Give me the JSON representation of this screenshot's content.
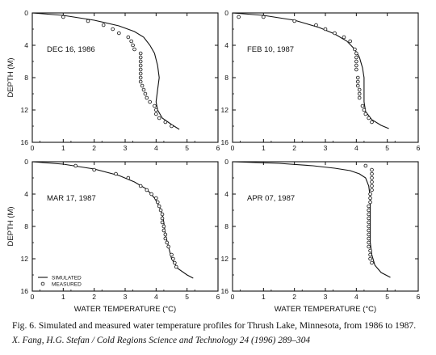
{
  "chart_data": [
    {
      "type": "line",
      "title": "DEC 16, 1986",
      "xlabel": "",
      "ylabel": "DEPTH (M)",
      "xlim": [
        0,
        6
      ],
      "ylim": [
        16,
        0
      ],
      "xticks": [
        "0",
        "1",
        "2",
        "3",
        "4",
        "5",
        "6"
      ],
      "yticks": [
        "0",
        "4",
        "8",
        "12",
        "16"
      ],
      "series": [
        {
          "name": "SIMULATED",
          "style": "line",
          "x": [
            0,
            1.0,
            2.0,
            2.8,
            3.3,
            3.6,
            3.8,
            3.95,
            4.05,
            4.1,
            4.05,
            4.0,
            4.05,
            4.2,
            4.5,
            4.75
          ],
          "y": [
            0,
            0.3,
            0.9,
            1.6,
            2.3,
            3.0,
            4.0,
            5.0,
            6.5,
            8.0,
            9.5,
            11.0,
            12.0,
            13.0,
            13.8,
            14.4
          ]
        },
        {
          "name": "MEASURED",
          "style": "circle",
          "x": [
            1.0,
            1.8,
            2.3,
            2.6,
            2.8,
            3.1,
            3.2,
            3.25,
            3.3,
            3.5,
            3.5,
            3.5,
            3.5,
            3.5,
            3.5,
            3.5,
            3.5,
            3.55,
            3.6,
            3.65,
            3.7,
            3.8,
            3.95,
            4.0,
            4.0,
            4.1,
            4.3,
            4.5
          ],
          "y": [
            0.5,
            1.0,
            1.5,
            2.0,
            2.5,
            3.0,
            3.5,
            4.0,
            4.5,
            5.0,
            5.5,
            6.0,
            6.5,
            7.0,
            7.5,
            8.0,
            8.5,
            9.0,
            9.5,
            10.0,
            10.5,
            11.0,
            11.5,
            12.0,
            12.5,
            13.0,
            13.5,
            14.0
          ]
        }
      ]
    },
    {
      "type": "line",
      "title": "FEB 10, 1987",
      "xlabel": "",
      "ylabel": "",
      "xlim": [
        0,
        6
      ],
      "ylim": [
        16,
        0
      ],
      "xticks": [
        "0",
        "1",
        "2",
        "3",
        "4",
        "5",
        "6"
      ],
      "yticks": [
        "0",
        "4",
        "8",
        "12",
        "16"
      ],
      "series": [
        {
          "name": "SIMULATED",
          "style": "line",
          "x": [
            0,
            1.0,
            2.0,
            2.8,
            3.3,
            3.7,
            3.95,
            4.1,
            4.2,
            4.25,
            4.25,
            4.25,
            4.3,
            4.5,
            4.8,
            5.05
          ],
          "y": [
            0,
            0.3,
            0.9,
            1.8,
            2.6,
            3.5,
            4.5,
            5.5,
            6.8,
            8.0,
            9.5,
            11.0,
            12.2,
            13.2,
            13.9,
            14.3
          ]
        },
        {
          "name": "MEASURED",
          "style": "circle",
          "x": [
            0.2,
            1.0,
            2.0,
            2.7,
            3.0,
            3.3,
            3.6,
            3.8,
            3.95,
            4.0,
            4.0,
            4.0,
            4.0,
            4.0,
            4.05,
            4.05,
            4.05,
            4.1,
            4.1,
            4.1,
            4.2,
            4.25,
            4.3,
            4.4,
            4.5
          ],
          "y": [
            0.5,
            0.5,
            1.0,
            1.5,
            2.0,
            2.5,
            3.0,
            3.5,
            4.5,
            5.0,
            5.5,
            6.0,
            6.5,
            7.0,
            8.0,
            8.5,
            9.0,
            9.5,
            10.0,
            10.5,
            11.5,
            12.0,
            12.5,
            13.0,
            13.5
          ]
        }
      ]
    },
    {
      "type": "line",
      "title": "MAR 17, 1987",
      "xlabel": "WATER TEMPERATURE (°C)",
      "ylabel": "DEPTH (M)",
      "xlim": [
        0,
        6
      ],
      "ylim": [
        16,
        0
      ],
      "xticks": [
        "0",
        "1",
        "2",
        "3",
        "4",
        "5",
        "6"
      ],
      "yticks": [
        "0",
        "4",
        "8",
        "12",
        "16"
      ],
      "legend": {
        "position": "bottom-left",
        "entries": [
          "SIMULATED",
          "MEASURED"
        ]
      },
      "series": [
        {
          "name": "SIMULATED",
          "style": "line",
          "x": [
            0,
            1.0,
            2.0,
            2.8,
            3.3,
            3.7,
            3.95,
            4.1,
            4.2,
            4.25,
            4.3,
            4.4,
            4.5,
            4.7,
            5.0,
            5.2
          ],
          "y": [
            0,
            0.3,
            0.9,
            1.7,
            2.5,
            3.4,
            4.5,
            5.5,
            6.5,
            7.5,
            9.0,
            10.5,
            12.0,
            13.2,
            14.0,
            14.4
          ]
        },
        {
          "name": "MEASURED",
          "style": "circle",
          "x": [
            1.4,
            2.0,
            2.7,
            3.1,
            3.5,
            3.7,
            3.85,
            4.0,
            4.05,
            4.1,
            4.15,
            4.2,
            4.2,
            4.2,
            4.25,
            4.25,
            4.3,
            4.3,
            4.35,
            4.4,
            4.5,
            4.55,
            4.6,
            4.65
          ],
          "y": [
            0.5,
            1.0,
            1.5,
            2.0,
            3.0,
            3.5,
            4.0,
            4.5,
            5.0,
            5.5,
            6.0,
            6.5,
            7.0,
            7.5,
            8.0,
            8.5,
            9.0,
            9.5,
            10.0,
            10.5,
            11.5,
            12.0,
            12.5,
            13.0
          ]
        }
      ]
    },
    {
      "type": "line",
      "title": "APR 07, 1987",
      "xlabel": "WATER TEMPERATURE (°C)",
      "ylabel": "",
      "xlim": [
        0,
        6
      ],
      "ylim": [
        16,
        0
      ],
      "xticks": [
        "0",
        "1",
        "2",
        "3",
        "4",
        "5",
        "6"
      ],
      "yticks": [
        "0",
        "4",
        "8",
        "12",
        "16"
      ],
      "series": [
        {
          "name": "SIMULATED",
          "style": "line",
          "x": [
            0,
            1.5,
            2.6,
            3.3,
            3.8,
            4.1,
            4.3,
            4.4,
            4.45,
            4.45,
            4.45,
            4.45,
            4.5,
            4.6,
            4.8,
            5.1
          ],
          "y": [
            0,
            0.2,
            0.5,
            0.8,
            1.1,
            1.5,
            2.0,
            3.0,
            4.5,
            6.0,
            8.0,
            10.0,
            11.5,
            12.8,
            13.7,
            14.3
          ]
        },
        {
          "name": "MEASURED",
          "style": "circle",
          "x": [
            4.3,
            4.5,
            4.5,
            4.5,
            4.5,
            4.5,
            4.5,
            4.45,
            4.45,
            4.45,
            4.4,
            4.4,
            4.4,
            4.4,
            4.4,
            4.4,
            4.4,
            4.4,
            4.4,
            4.4,
            4.4,
            4.45,
            4.45,
            4.45,
            4.5
          ],
          "y": [
            0.5,
            1.0,
            1.5,
            2.0,
            2.5,
            3.0,
            3.5,
            4.0,
            4.5,
            5.0,
            5.5,
            6.0,
            6.5,
            7.0,
            7.5,
            8.0,
            8.5,
            9.0,
            9.5,
            10.0,
            10.5,
            11.0,
            11.5,
            12.0,
            12.5
          ]
        }
      ]
    }
  ],
  "figure": {
    "caption": "Fig. 6. Simulated and measured water temperature profiles for Thrush Lake, Minnesota, from 1986 to 1987.",
    "citation": "X. Fang, H.G. Stefan / Cold Regions Science and Technology 24 (1996) 289–304"
  }
}
